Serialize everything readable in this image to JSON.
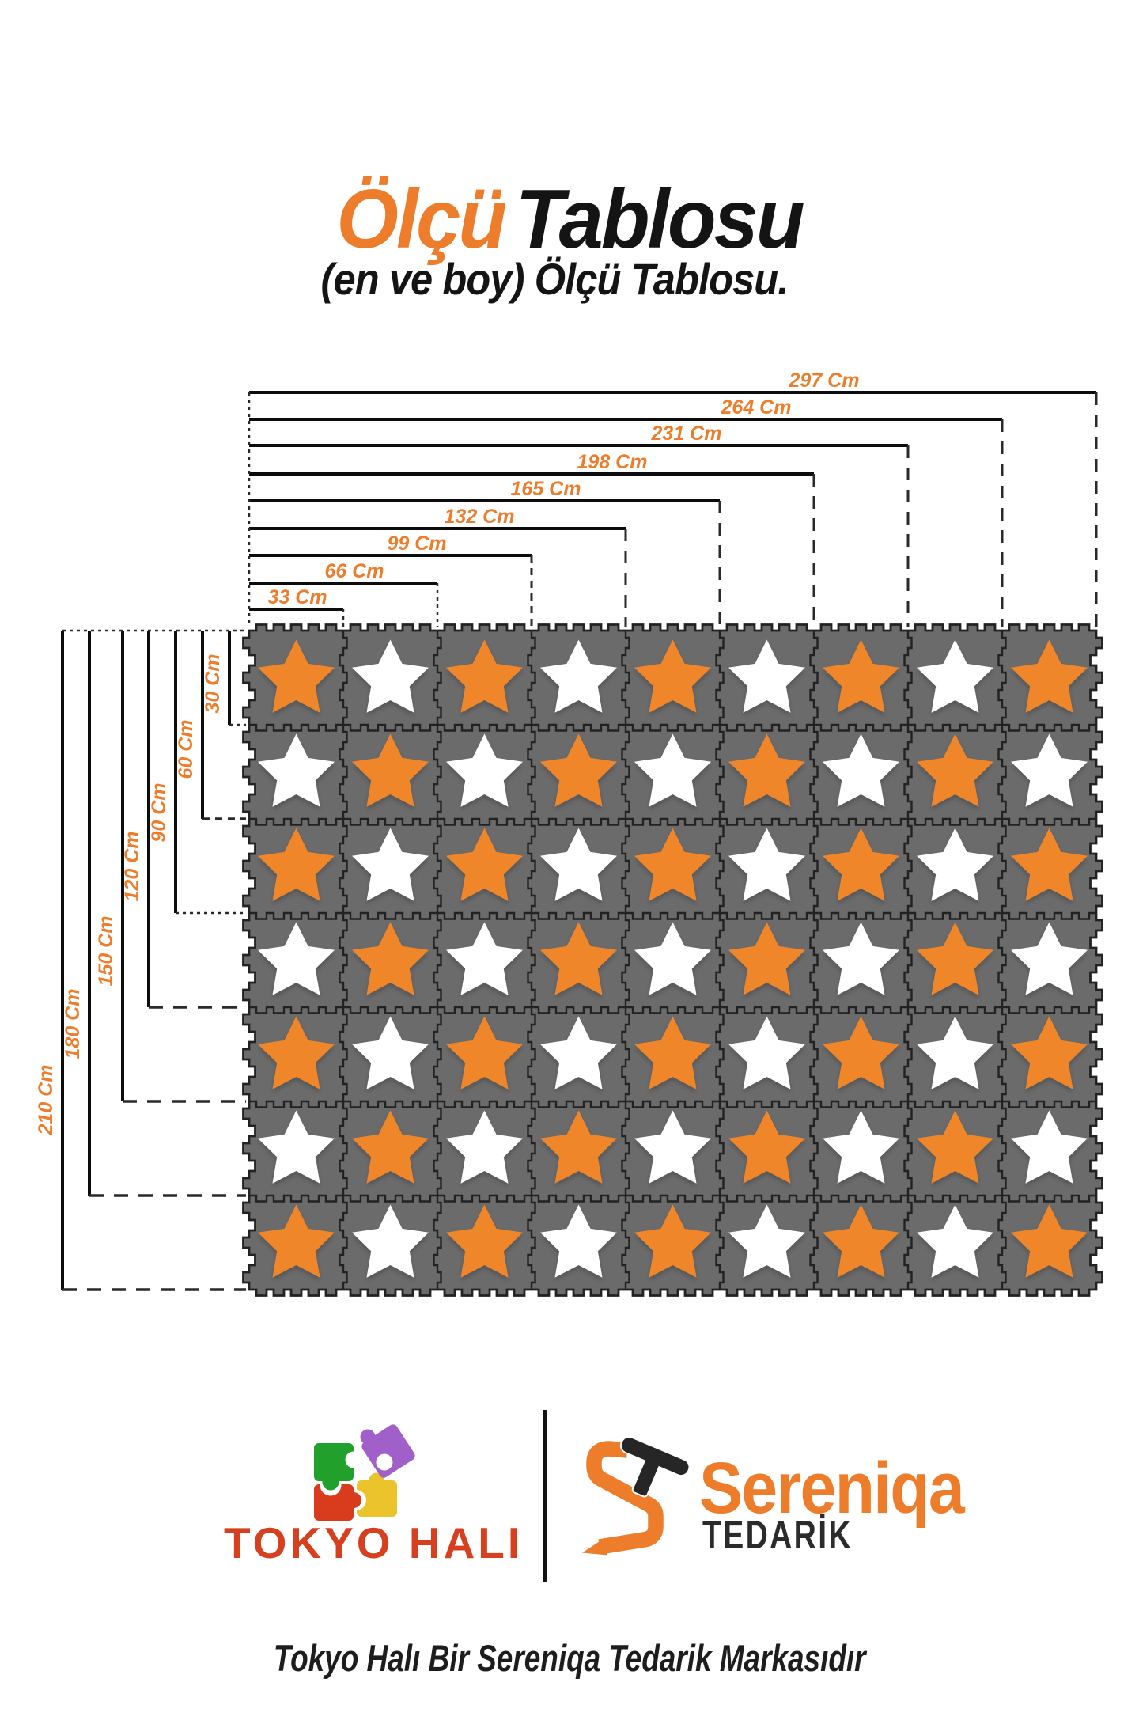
{
  "title": {
    "highlight": "Ölçü",
    "rest": "Tablosu"
  },
  "subtitle": "(en ve boy) Ölçü Tablosu.",
  "size_chart": {
    "unit": "Cm",
    "width_labels": [
      "33 Cm",
      "66 Cm",
      "99 Cm",
      "132 Cm",
      "165 Cm",
      "198 Cm",
      "231 Cm",
      "264 Cm",
      "297 Cm"
    ],
    "widths_cm": [
      33,
      66,
      99,
      132,
      165,
      198,
      231,
      264,
      297
    ],
    "height_labels": [
      "30 Cm",
      "60 Cm",
      "90 Cm",
      "120 Cm",
      "150 Cm",
      "180 Cm",
      "210 Cm"
    ],
    "heights_cm": [
      30,
      60,
      90,
      120,
      150,
      180,
      210
    ],
    "grid": {
      "cols": 9,
      "rows": 7
    },
    "tile_cm": {
      "width": 33,
      "height": 30
    }
  },
  "mat": {
    "tile_color": "#6B6B6B",
    "seam_color": "#222222",
    "star_orange": "#F0862C",
    "star_white": "#FFFFFF",
    "first_star": "orange"
  },
  "footer": {
    "tokyo_logo": {
      "text": "TOKYO HALI",
      "text_color": "#D6401F",
      "puzzle_green": "#21A12B",
      "puzzle_purple": "#A05FC9",
      "puzzle_red": "#D93B1D",
      "puzzle_yellow": "#EBC32B"
    },
    "sereniqa_logo": {
      "brand": "Sereniqa",
      "brand_color": "#ED7D2B",
      "sub": "TEDARİK",
      "sub_color": "#2b2b2b"
    },
    "tagline": "Tokyo Halı Bir Sereniqa Tedarik Markasıdır"
  },
  "colors": {
    "accent_orange": "#ED7D2B",
    "line_black": "#0c0c0c",
    "background": "#ffffff"
  }
}
